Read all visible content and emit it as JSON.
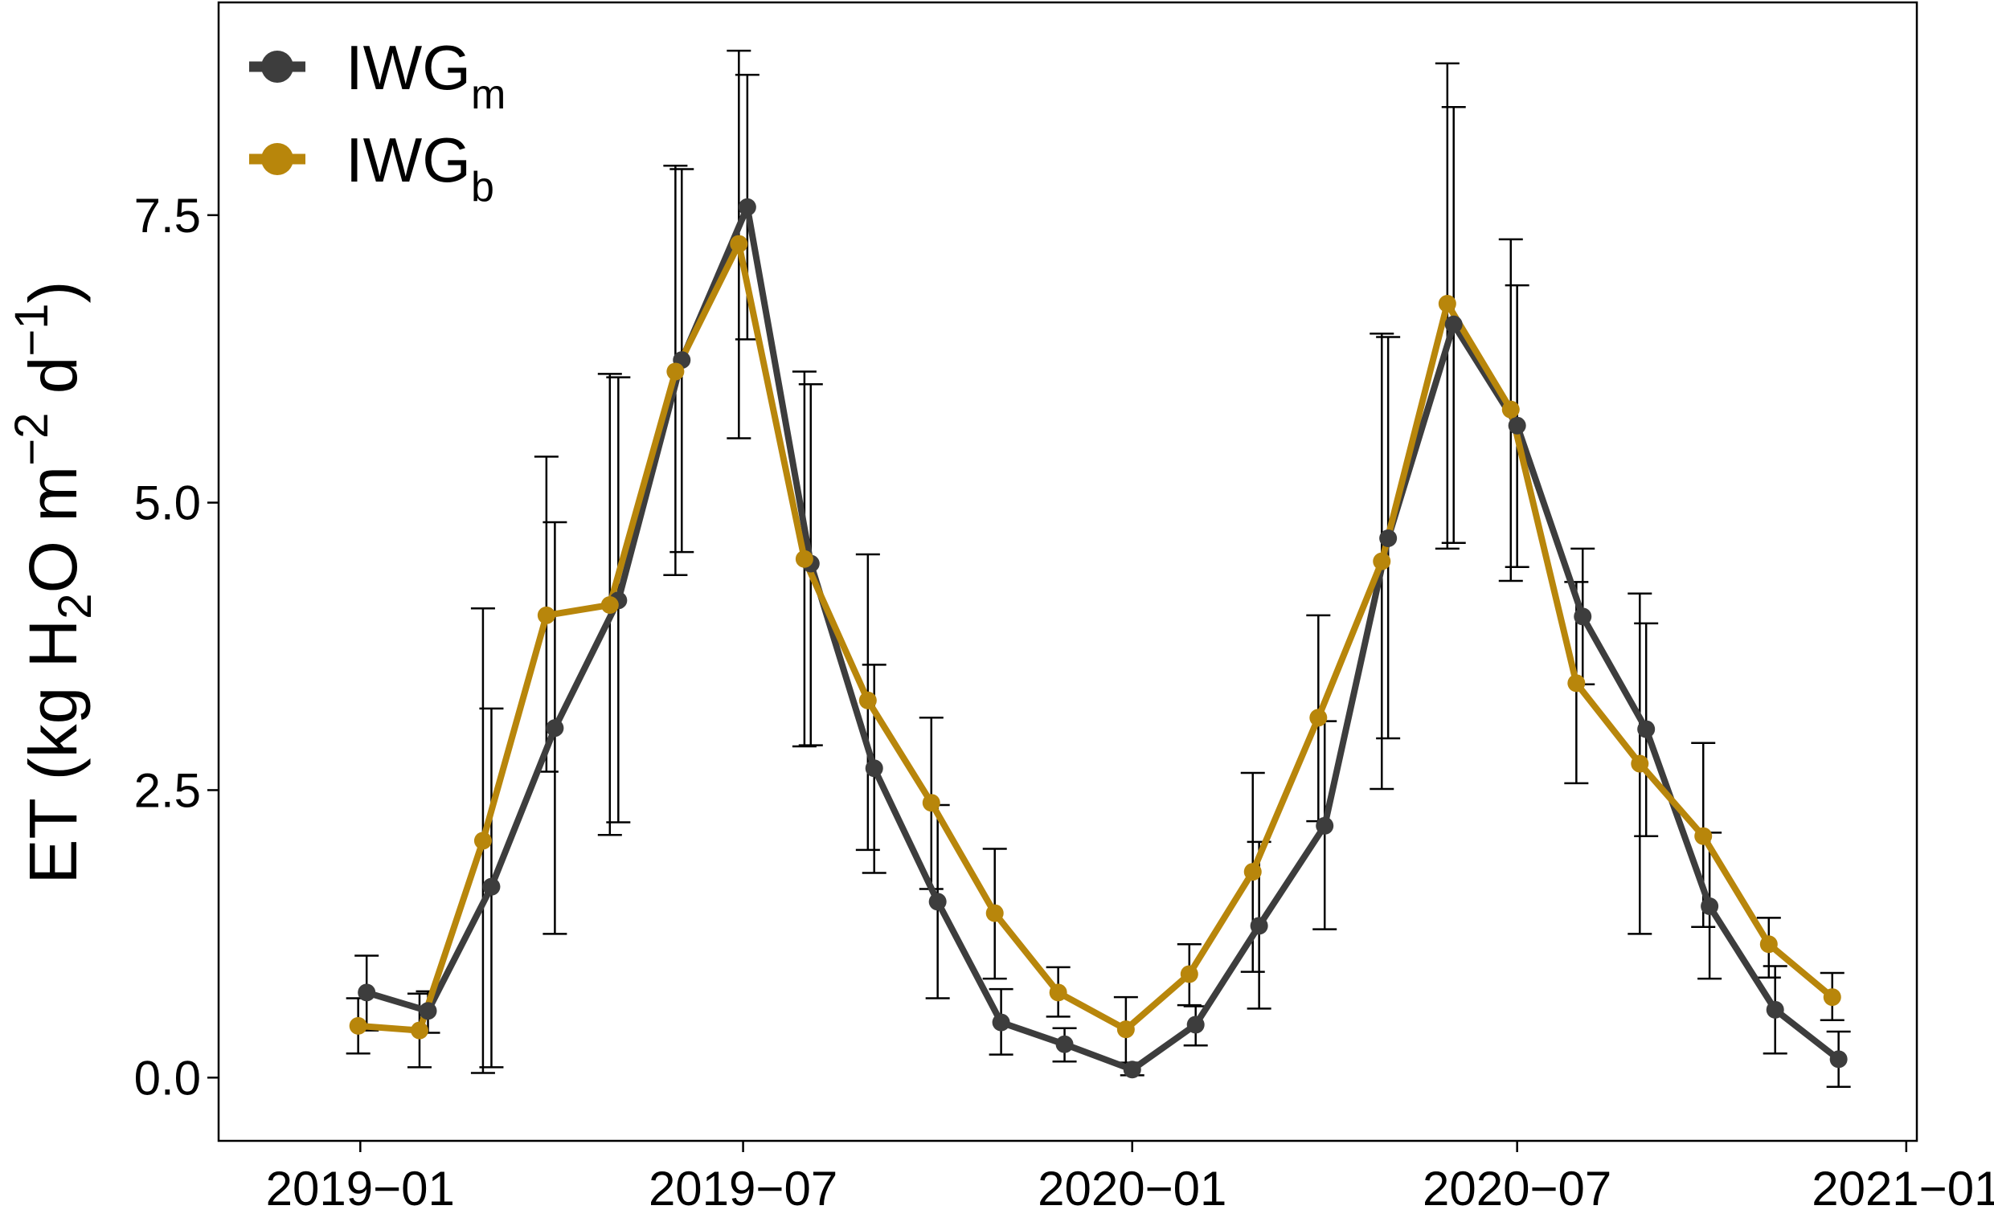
{
  "chart_data": {
    "type": "line",
    "title": "",
    "xlabel": "",
    "ylabel": "ET (kg H2O m-2 d-1)",
    "ylabel_parts": {
      "prefix": "ET (kg H",
      "sub2": "2",
      "mid": "O m",
      "sup1": "−2",
      "d": " d",
      "sup2": "−1",
      "suffix": ")"
    },
    "xlim": [
      "2018-10-26",
      "2021-01-06"
    ],
    "ylim": [
      -0.55,
      9.35
    ],
    "x_ticks": [
      {
        "value": "2019-01-01",
        "label": "2019−01"
      },
      {
        "value": "2019-07-01",
        "label": "2019−07"
      },
      {
        "value": "2020-01-01",
        "label": "2020−01"
      },
      {
        "value": "2020-07-01",
        "label": "2020−07"
      },
      {
        "value": "2021-01-01",
        "label": "2021−01"
      }
    ],
    "y_ticks": [
      {
        "value": 0.0,
        "label": "0.0"
      },
      {
        "value": 2.5,
        "label": "2.5"
      },
      {
        "value": 5.0,
        "label": "5.0"
      },
      {
        "value": 7.5,
        "label": "7.5"
      }
    ],
    "grid": false,
    "legend_position": "top-left",
    "series": [
      {
        "name": "IWGm",
        "label_main": "IWG",
        "label_sub": "m",
        "color": "#3d3d3d",
        "x": [
          "2019-01-04",
          "2019-02-02",
          "2019-03-04",
          "2019-04-03",
          "2019-05-03",
          "2019-06-02",
          "2019-07-03",
          "2019-08-02",
          "2019-09-01",
          "2019-10-01",
          "2019-10-31",
          "2019-11-30",
          "2020-01-01",
          "2020-01-31",
          "2020-03-01",
          "2020-04-01",
          "2020-05-01",
          "2020-06-01",
          "2020-07-01",
          "2020-08-01",
          "2020-08-31",
          "2020-09-30",
          "2020-10-31",
          "2020-11-30"
        ],
        "y": [
          0.74,
          0.58,
          1.66,
          3.04,
          4.15,
          6.24,
          7.57,
          4.47,
          2.69,
          1.53,
          0.48,
          0.29,
          0.07,
          0.46,
          1.32,
          2.19,
          4.69,
          6.55,
          5.67,
          4.01,
          3.03,
          1.49,
          0.59,
          0.16
        ],
        "err_low": [
          0.41,
          0.39,
          0.09,
          1.25,
          2.22,
          4.57,
          6.42,
          2.89,
          1.78,
          0.69,
          0.2,
          0.14,
          0.02,
          0.28,
          0.6,
          1.29,
          2.95,
          4.65,
          4.44,
          3.42,
          2.1,
          0.86,
          0.21,
          -0.08
        ],
        "err_high": [
          1.06,
          0.75,
          3.21,
          4.83,
          6.09,
          7.9,
          8.72,
          6.03,
          3.59,
          2.37,
          0.77,
          0.43,
          0.12,
          0.62,
          2.05,
          3.1,
          6.44,
          8.44,
          6.89,
          4.6,
          3.95,
          2.13,
          0.97,
          0.4
        ]
      },
      {
        "name": "IWGb",
        "label_main": "IWG",
        "label_sub": "b",
        "color": "#b8860b",
        "x": [
          "2018-12-31",
          "2019-01-29",
          "2019-02-28",
          "2019-03-30",
          "2019-04-29",
          "2019-05-30",
          "2019-06-29",
          "2019-07-30",
          "2019-08-29",
          "2019-09-28",
          "2019-10-28",
          "2019-11-27",
          "2019-12-29",
          "2020-01-28",
          "2020-02-27",
          "2020-03-29",
          "2020-04-28",
          "2020-05-29",
          "2020-06-28",
          "2020-07-29",
          "2020-08-28",
          "2020-09-27",
          "2020-10-28",
          "2020-11-27"
        ],
        "y": [
          0.45,
          0.41,
          2.06,
          4.02,
          4.11,
          6.14,
          7.25,
          4.51,
          3.28,
          2.39,
          1.43,
          0.74,
          0.42,
          0.9,
          1.79,
          3.13,
          4.49,
          6.73,
          5.81,
          3.43,
          2.73,
          2.1,
          1.16,
          0.7
        ],
        "err_low": [
          0.21,
          0.09,
          0.04,
          2.66,
          2.11,
          4.37,
          5.56,
          2.88,
          1.98,
          1.64,
          0.86,
          0.53,
          0.13,
          0.63,
          0.92,
          2.23,
          2.51,
          4.6,
          4.32,
          2.56,
          1.25,
          1.31,
          0.87,
          0.5
        ],
        "err_high": [
          0.69,
          0.73,
          4.08,
          5.4,
          6.12,
          7.93,
          8.93,
          6.14,
          4.55,
          3.13,
          1.99,
          0.96,
          0.7,
          1.16,
          2.65,
          4.02,
          6.47,
          8.82,
          7.29,
          4.31,
          4.21,
          2.91,
          1.39,
          0.91
        ]
      }
    ]
  }
}
